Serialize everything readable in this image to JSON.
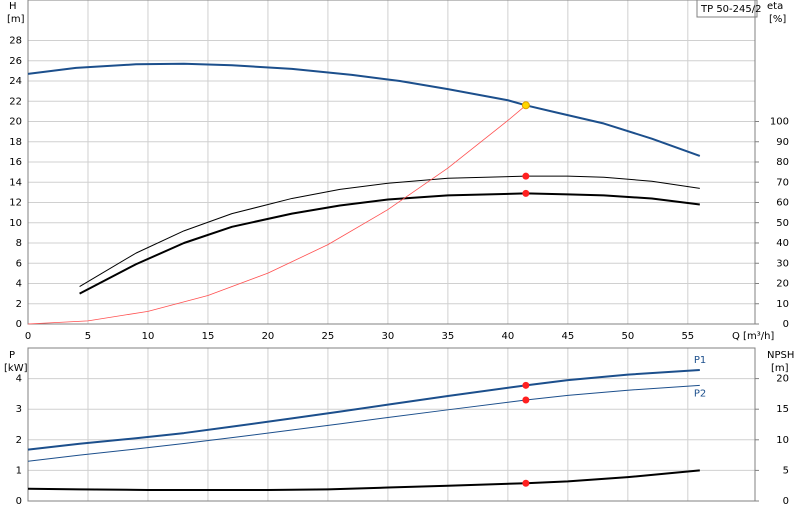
{
  "chart_data": [
    {
      "type": "line",
      "label": "TP 50-245/2",
      "ylabel": "H",
      "yunit": "[m]",
      "y2label": "eta",
      "y2unit": "[%]",
      "xlabel": "Q [m³/h]",
      "xlim": [
        0,
        60.6
      ],
      "xticks": [
        0,
        5,
        10,
        15,
        20,
        25,
        30,
        35,
        40,
        45,
        50,
        55
      ],
      "ylim": [
        0,
        32
      ],
      "yticks": [
        0,
        2,
        4,
        6,
        8,
        10,
        12,
        14,
        16,
        18,
        20,
        22,
        24,
        26,
        28
      ],
      "y2lim": [
        0,
        160
      ],
      "y2ticks": [
        0,
        10,
        20,
        30,
        40,
        50,
        60,
        70,
        80,
        90,
        100
      ],
      "grid": true,
      "series": [
        {
          "color": "#1c4f8c",
          "line_width": 2,
          "axis": "y",
          "x": [
            0,
            4,
            9,
            13,
            17,
            22,
            27,
            31,
            35,
            40,
            41.5,
            44,
            48,
            52,
            56
          ],
          "values": [
            24.7,
            25.3,
            25.65,
            25.7,
            25.55,
            25.2,
            24.6,
            24.0,
            23.2,
            22.1,
            21.6,
            20.9,
            19.8,
            18.3,
            16.6
          ]
        },
        {
          "color": "#000000",
          "line_width": 1,
          "axis": "y2",
          "x": [
            4.3,
            9,
            13,
            17,
            22,
            26,
            30,
            35,
            41.5,
            45,
            48,
            52,
            56
          ],
          "values": [
            18.5,
            35,
            46,
            54.5,
            62,
            66.5,
            69.5,
            72,
            73,
            73,
            72.5,
            70.5,
            67
          ]
        },
        {
          "color": "#000000",
          "line_width": 2,
          "axis": "y2",
          "x": [
            4.3,
            9,
            13,
            17,
            22,
            26,
            30,
            35,
            41.5,
            45,
            48,
            52,
            56
          ],
          "values": [
            15,
            29.5,
            40,
            48,
            54.5,
            58.5,
            61.5,
            63.5,
            64.5,
            64,
            63.5,
            62,
            59
          ]
        },
        {
          "color": "#ff5050",
          "line_width": 0.8,
          "axis": "y",
          "x": [
            0,
            5,
            10,
            15,
            20,
            25,
            30,
            35,
            40,
            41.7
          ],
          "values": [
            0,
            0.31,
            1.25,
            2.82,
            5.02,
            7.84,
            11.3,
            15.4,
            20.1,
            21.8
          ]
        }
      ],
      "points": [
        {
          "x": 41.5,
          "y": 21.6,
          "axis": "y",
          "color": "#ffd700"
        },
        {
          "x": 41.5,
          "y": 73,
          "axis": "y2",
          "color": "#ff2020"
        },
        {
          "x": 41.5,
          "y": 64.5,
          "axis": "y2",
          "color": "#ff2020"
        }
      ]
    },
    {
      "type": "line",
      "ylabel": "P",
      "yunit": "[kW]",
      "y2label": "NPSH",
      "y2unit": "[m]",
      "xlim": [
        0,
        60.6
      ],
      "xticks": [
        0,
        5,
        10,
        15,
        20,
        25,
        30,
        35,
        40,
        45,
        50,
        55
      ],
      "ylim": [
        0,
        5
      ],
      "yticks": [
        0,
        1,
        2,
        3,
        4
      ],
      "y2lim": [
        0,
        25
      ],
      "y2ticks": [
        0,
        5,
        10,
        15,
        20
      ],
      "grid": true,
      "series": [
        {
          "name": "P1",
          "color": "#1c4f8c",
          "line_width": 2,
          "axis": "y",
          "x": [
            0,
            4.3,
            9,
            13,
            17,
            22,
            26,
            30,
            35,
            41.5,
            45,
            50,
            56
          ],
          "values": [
            1.68,
            1.87,
            2.05,
            2.22,
            2.43,
            2.7,
            2.92,
            3.15,
            3.43,
            3.78,
            3.95,
            4.13,
            4.28
          ]
        },
        {
          "name": "P2",
          "color": "#1c4f8c",
          "line_width": 1,
          "axis": "y",
          "x": [
            0,
            4.3,
            9,
            13,
            17,
            22,
            26,
            30,
            35,
            41.5,
            45,
            50,
            56
          ],
          "values": [
            1.3,
            1.5,
            1.7,
            1.88,
            2.07,
            2.32,
            2.52,
            2.73,
            2.98,
            3.3,
            3.45,
            3.62,
            3.78
          ]
        },
        {
          "color": "#000000",
          "line_width": 2,
          "axis": "y2",
          "x": [
            0,
            4.3,
            10,
            20,
            25,
            30,
            35,
            41.5,
            45,
            50,
            56
          ],
          "values": [
            2.0,
            1.9,
            1.8,
            1.8,
            1.9,
            2.2,
            2.5,
            2.9,
            3.2,
            3.9,
            5.0
          ]
        }
      ],
      "points": [
        {
          "x": 41.5,
          "y": 3.78,
          "axis": "y",
          "color": "#ff2020"
        },
        {
          "x": 41.5,
          "y": 3.3,
          "axis": "y",
          "color": "#ff2020"
        },
        {
          "x": 41.5,
          "y": 2.9,
          "axis": "y2",
          "color": "#ff2020"
        }
      ]
    }
  ]
}
